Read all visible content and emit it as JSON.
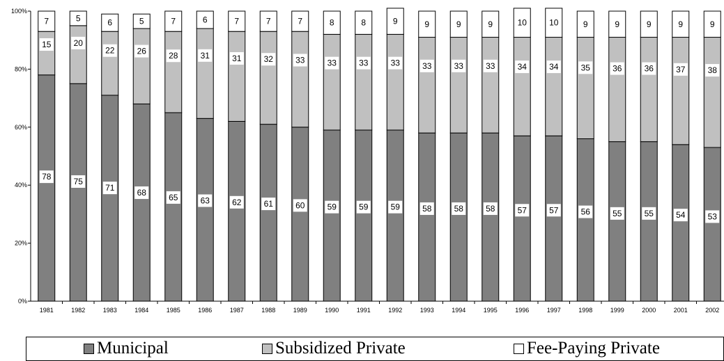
{
  "chart_data": {
    "type": "bar",
    "stacked": true,
    "categories": [
      "1981",
      "1982",
      "1983",
      "1984",
      "1985",
      "1986",
      "1987",
      "1988",
      "1989",
      "1990",
      "1991",
      "1992",
      "1993",
      "1994",
      "1995",
      "1996",
      "1997",
      "1998",
      "1999",
      "2000",
      "2001",
      "2002"
    ],
    "series": [
      {
        "name": "Municipal",
        "color": "#808080",
        "values": [
          78,
          75,
          71,
          68,
          65,
          63,
          62,
          61,
          60,
          59,
          59,
          59,
          58,
          58,
          58,
          57,
          57,
          56,
          55,
          55,
          54,
          53
        ]
      },
      {
        "name": "Subsidized Private",
        "color": "#c0c0c0",
        "values": [
          15,
          20,
          22,
          26,
          28,
          31,
          31,
          32,
          33,
          33,
          33,
          33,
          33,
          33,
          33,
          34,
          34,
          35,
          36,
          36,
          37,
          38
        ]
      },
      {
        "name": "Fee-Paying Private",
        "color": "#ffffff",
        "values": [
          7,
          5,
          6,
          5,
          7,
          6,
          7,
          7,
          7,
          8,
          8,
          9,
          9,
          9,
          9,
          10,
          10,
          9,
          9,
          9,
          9,
          9
        ]
      }
    ],
    "yticks": [
      "0%",
      "20%",
      "40%",
      "60%",
      "80%",
      "100%"
    ],
    "ylim": [
      0,
      100
    ],
    "grid": false,
    "legend_position": "bottom"
  }
}
